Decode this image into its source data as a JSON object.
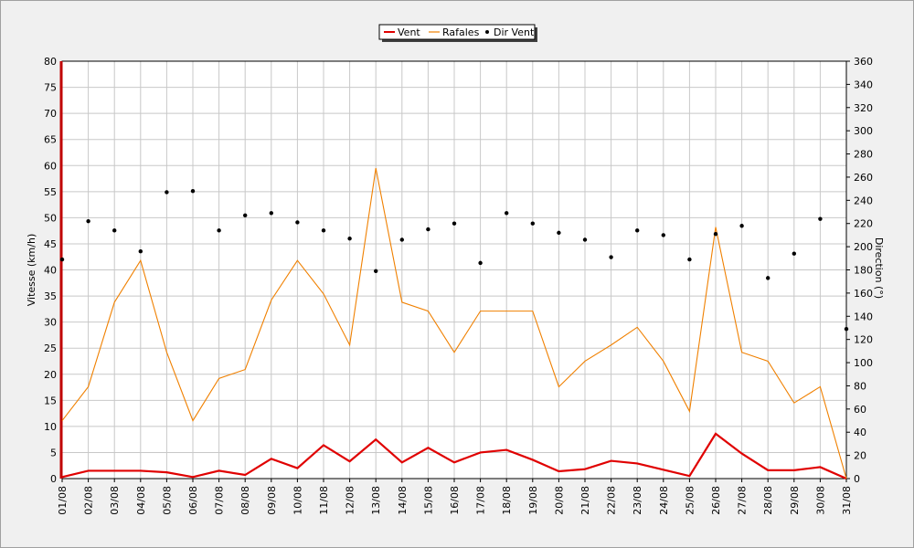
{
  "chart_data": {
    "type": "line",
    "title": "",
    "xlabel": "",
    "ylabel": "Vitesse (km/h)",
    "y2label": "Direction (°)",
    "ylim": [
      0,
      80
    ],
    "y2lim": [
      0,
      360
    ],
    "yticks": [
      0,
      5,
      10,
      15,
      20,
      25,
      30,
      35,
      40,
      45,
      50,
      55,
      60,
      65,
      70,
      75,
      80
    ],
    "y2ticks": [
      0,
      20,
      40,
      60,
      80,
      100,
      120,
      140,
      160,
      180,
      200,
      220,
      240,
      260,
      280,
      300,
      320,
      340,
      360
    ],
    "grid": true,
    "legend_position": "top-center",
    "categories": [
      "01/08",
      "02/08",
      "03/08",
      "04/08",
      "05/08",
      "06/08",
      "07/08",
      "08/08",
      "09/08",
      "10/08",
      "11/08",
      "12/08",
      "13/08",
      "14/08",
      "15/08",
      "16/08",
      "17/08",
      "18/08",
      "19/08",
      "20/08",
      "21/08",
      "22/08",
      "23/08",
      "24/08",
      "25/08",
      "26/08",
      "27/08",
      "28/08",
      "29/08",
      "30/08",
      "31/08"
    ],
    "series": [
      {
        "name": "Vent",
        "type": "line",
        "axis": "left",
        "color": "#e00000",
        "values": [
          0.3,
          1.5,
          1.5,
          1.5,
          1.2,
          0.3,
          1.5,
          0.7,
          3.8,
          2.0,
          6.4,
          3.3,
          7.5,
          3.1,
          5.9,
          3.1,
          5.0,
          5.5,
          3.6,
          1.4,
          1.8,
          3.4,
          2.9,
          1.7,
          0.5,
          8.6,
          4.8,
          1.6,
          1.6,
          2.2,
          0.0
        ]
      },
      {
        "name": "Rafales",
        "type": "line",
        "axis": "left",
        "color": "#f08000",
        "values": [
          11.1,
          17.6,
          33.8,
          41.8,
          24.2,
          11.1,
          19.2,
          20.9,
          34.2,
          41.8,
          35.4,
          25.6,
          59.5,
          33.8,
          32.1,
          24.2,
          32.1,
          32.1,
          32.1,
          17.6,
          22.5,
          25.6,
          29.0,
          22.5,
          12.9,
          48.2,
          24.2,
          22.5,
          14.5,
          17.6,
          0.0
        ]
      },
      {
        "name": "Dir Vent",
        "type": "scatter",
        "axis": "right",
        "color": "#000000",
        "values": [
          189,
          222,
          214,
          196,
          247,
          248,
          214,
          227,
          229,
          221,
          214,
          207,
          179,
          206,
          215,
          220,
          186,
          229,
          220,
          212,
          206,
          191,
          214,
          210,
          189,
          211,
          218,
          173,
          194,
          224,
          129
        ]
      }
    ]
  }
}
